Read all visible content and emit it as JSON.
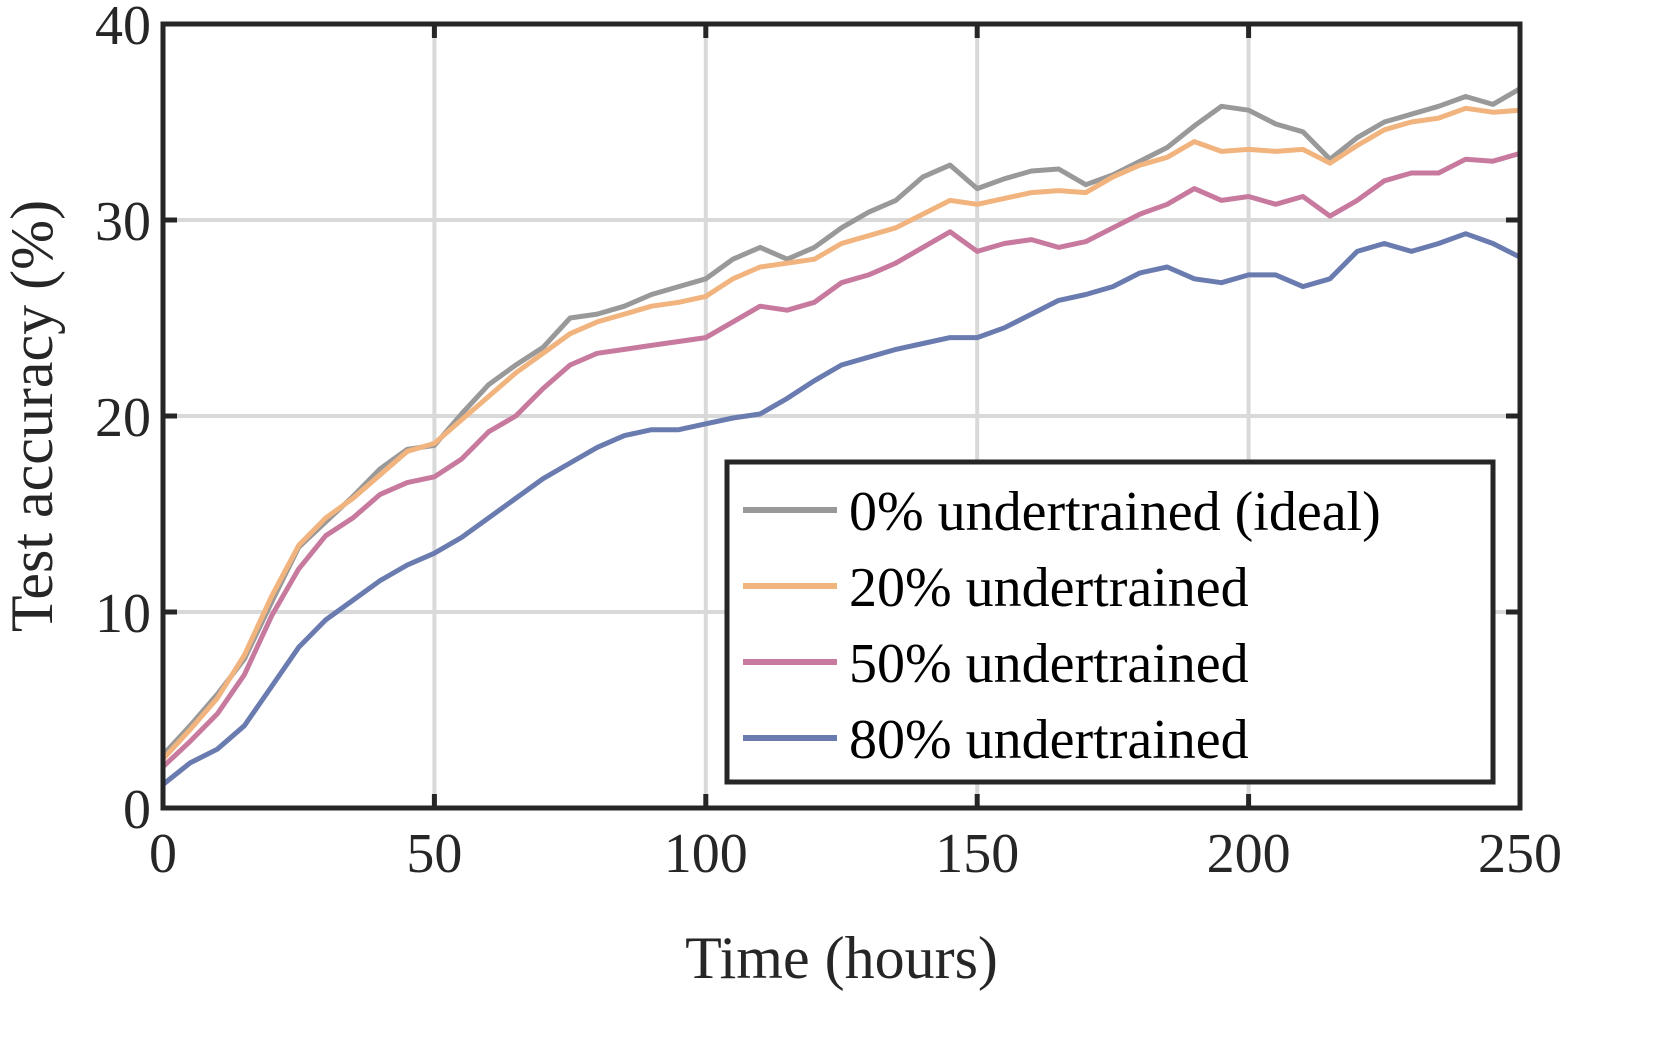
{
  "chart_data": {
    "type": "line",
    "title": "",
    "xlabel": "Time (hours)",
    "ylabel": "Test accuracy (%)",
    "xlim": [
      0,
      250
    ],
    "ylim": [
      0,
      40
    ],
    "xticks": [
      "0",
      "50",
      "100",
      "150",
      "200",
      "250"
    ],
    "yticks": [
      "0",
      "10",
      "20",
      "30",
      "40"
    ],
    "grid": true,
    "legend_position": "bottom-right",
    "series": [
      {
        "name": "0% undertrained (ideal)",
        "color": "#999999",
        "x": [
          0,
          5,
          10,
          15,
          20,
          25,
          30,
          35,
          40,
          45,
          50,
          55,
          60,
          65,
          70,
          75,
          80,
          85,
          90,
          95,
          100,
          105,
          110,
          115,
          120,
          125,
          130,
          135,
          140,
          145,
          150,
          155,
          160,
          165,
          170,
          175,
          180,
          185,
          190,
          195,
          200,
          205,
          210,
          215,
          220,
          225,
          230,
          235,
          240,
          245,
          250
        ],
        "y": [
          2.7,
          4.2,
          5.8,
          7.6,
          10.5,
          13.3,
          14.6,
          15.9,
          17.3,
          18.3,
          18.5,
          20.1,
          21.6,
          22.6,
          23.5,
          25.0,
          25.2,
          25.6,
          26.2,
          26.6,
          27.0,
          28.0,
          28.6,
          28.0,
          28.6,
          29.6,
          30.4,
          31.0,
          32.2,
          32.8,
          31.6,
          32.1,
          32.5,
          32.6,
          31.8,
          32.3,
          33.0,
          33.7,
          34.8,
          35.8,
          35.6,
          34.9,
          34.5,
          33.1,
          34.2,
          35.0,
          35.4,
          35.8,
          36.3,
          35.9,
          36.7
        ]
      },
      {
        "name": "20% undertrained",
        "color": "#F2B47E",
        "x": [
          0,
          5,
          10,
          15,
          20,
          25,
          30,
          35,
          40,
          45,
          50,
          55,
          60,
          65,
          70,
          75,
          80,
          85,
          90,
          95,
          100,
          105,
          110,
          115,
          120,
          125,
          130,
          135,
          140,
          145,
          150,
          155,
          160,
          165,
          170,
          175,
          180,
          185,
          190,
          195,
          200,
          205,
          210,
          215,
          220,
          225,
          230,
          235,
          240,
          245,
          250
        ],
        "y": [
          2.5,
          4.0,
          5.6,
          7.8,
          10.8,
          13.4,
          14.8,
          15.8,
          17.0,
          18.2,
          18.6,
          19.8,
          21.0,
          22.2,
          23.2,
          24.2,
          24.8,
          25.2,
          25.6,
          25.8,
          26.1,
          27.0,
          27.6,
          27.8,
          28.0,
          28.8,
          29.2,
          29.6,
          30.3,
          31.0,
          30.8,
          31.1,
          31.4,
          31.5,
          31.4,
          32.2,
          32.8,
          33.2,
          34.0,
          33.5,
          33.6,
          33.5,
          33.6,
          32.9,
          33.8,
          34.6,
          35.0,
          35.2,
          35.7,
          35.5,
          35.6
        ]
      },
      {
        "name": "50% undertrained",
        "color": "#C87A9E",
        "x": [
          0,
          5,
          10,
          15,
          20,
          25,
          30,
          35,
          40,
          45,
          50,
          55,
          60,
          65,
          70,
          75,
          80,
          85,
          90,
          95,
          100,
          105,
          110,
          115,
          120,
          125,
          130,
          135,
          140,
          145,
          150,
          155,
          160,
          165,
          170,
          175,
          180,
          185,
          190,
          195,
          200,
          205,
          210,
          215,
          220,
          225,
          230,
          235,
          240,
          245,
          250
        ],
        "y": [
          2.1,
          3.4,
          4.8,
          6.8,
          9.8,
          12.2,
          13.9,
          14.8,
          16.0,
          16.6,
          16.9,
          17.8,
          19.2,
          20.0,
          21.4,
          22.6,
          23.2,
          23.4,
          23.6,
          23.8,
          24.0,
          24.8,
          25.6,
          25.4,
          25.8,
          26.8,
          27.2,
          27.8,
          28.6,
          29.4,
          28.4,
          28.8,
          29.0,
          28.6,
          28.9,
          29.6,
          30.3,
          30.8,
          31.6,
          31.0,
          31.2,
          30.8,
          31.2,
          30.2,
          31.0,
          32.0,
          32.4,
          32.4,
          33.1,
          33.0,
          33.4
        ]
      },
      {
        "name": "80% undertrained",
        "color": "#6A7BB0",
        "x": [
          0,
          5,
          10,
          15,
          20,
          25,
          30,
          35,
          40,
          45,
          50,
          55,
          60,
          65,
          70,
          75,
          80,
          85,
          90,
          95,
          100,
          105,
          110,
          115,
          120,
          125,
          130,
          135,
          140,
          145,
          150,
          155,
          160,
          165,
          170,
          175,
          180,
          185,
          190,
          195,
          200,
          205,
          210,
          215,
          220,
          225,
          230,
          235,
          240,
          245,
          250
        ],
        "y": [
          1.2,
          2.3,
          3.0,
          4.2,
          6.2,
          8.2,
          9.6,
          10.6,
          11.6,
          12.4,
          13.0,
          13.8,
          14.8,
          15.8,
          16.8,
          17.6,
          18.4,
          19.0,
          19.3,
          19.3,
          19.6,
          19.9,
          20.1,
          20.9,
          21.8,
          22.6,
          23.0,
          23.4,
          23.7,
          24.0,
          24.0,
          24.5,
          25.2,
          25.9,
          26.2,
          26.6,
          27.3,
          27.6,
          27.0,
          26.8,
          27.2,
          27.2,
          26.6,
          27.0,
          28.4,
          28.8,
          28.4,
          28.8,
          29.3,
          28.8,
          28.1
        ]
      }
    ]
  }
}
